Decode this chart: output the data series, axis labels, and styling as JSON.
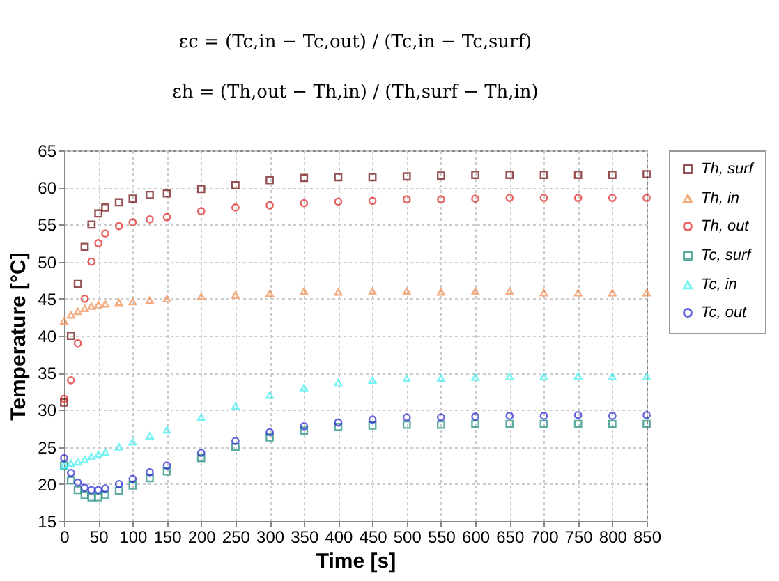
{
  "chart_data": {
    "type": "scatter",
    "annotations": [
      "εc = (Tc,in − Tc,out) / (Tc,in − Tc,surf)",
      "εh = (Th,out − Th,in) / (Th,surf − Th,in)"
    ],
    "xlabel": "Time [s]",
    "ylabel": "Temperature [°C]",
    "x": [
      0,
      10,
      20,
      30,
      40,
      50,
      60,
      80,
      100,
      125,
      150,
      200,
      250,
      300,
      350,
      400,
      450,
      500,
      550,
      600,
      650,
      700,
      750,
      800,
      850
    ],
    "series": [
      {
        "name": "Th, surf",
        "color": "#6b0a0a",
        "marker": "square",
        "values": [
          31,
          40,
          47,
          52,
          55,
          56.5,
          57.3,
          58,
          58.5,
          59,
          59.2,
          59.8,
          60.3,
          61,
          61.3,
          61.4,
          61.4,
          61.5,
          61.6,
          61.7,
          61.7,
          61.7,
          61.7,
          61.7,
          61.8
        ]
      },
      {
        "name": "Th, in",
        "color": "#f08a4b",
        "marker": "triangle",
        "values": [
          42,
          42.8,
          43.3,
          43.7,
          44,
          44.2,
          44.3,
          44.5,
          44.6,
          44.8,
          45,
          45.3,
          45.5,
          45.7,
          46,
          45.9,
          46,
          46,
          45.9,
          46,
          46,
          45.8,
          45.8,
          45.8,
          45.8
        ]
      },
      {
        "name": "Th, out",
        "color": "#e02020",
        "marker": "circle",
        "values": [
          31.5,
          34,
          39,
          45,
          50,
          52.5,
          53.8,
          54.8,
          55.3,
          55.7,
          56,
          56.8,
          57.3,
          57.6,
          57.9,
          58.1,
          58.2,
          58.4,
          58.4,
          58.5,
          58.6,
          58.6,
          58.6,
          58.6,
          58.6
        ]
      },
      {
        "name": "Tc, surf",
        "color": "#1a8a7a",
        "marker": "square",
        "values": [
          22.5,
          20.5,
          19.2,
          18.5,
          18.2,
          18.2,
          18.5,
          19.1,
          19.8,
          20.8,
          21.7,
          23.5,
          25,
          26.3,
          27.2,
          27.7,
          27.9,
          28,
          28,
          28.1,
          28.1,
          28.1,
          28.1,
          28.1,
          28.1
        ]
      },
      {
        "name": "Tc, in",
        "color": "#3ff0f0",
        "marker": "triangle",
        "values": [
          22.5,
          22.8,
          23,
          23.3,
          23.7,
          24,
          24.3,
          25,
          25.7,
          26.5,
          27.3,
          29,
          30.5,
          32,
          33,
          33.7,
          34,
          34.2,
          34.3,
          34.4,
          34.5,
          34.5,
          34.6,
          34.5,
          34.5
        ]
      },
      {
        "name": "Tc, out",
        "color": "#2222d0",
        "marker": "circle",
        "values": [
          23.5,
          21.5,
          20.2,
          19.5,
          19.2,
          19.2,
          19.4,
          20,
          20.7,
          21.6,
          22.5,
          24.2,
          25.8,
          27,
          27.8,
          28.3,
          28.7,
          29,
          29,
          29.1,
          29.2,
          29.2,
          29.3,
          29.2,
          29.3
        ]
      }
    ],
    "xlim": [
      0,
      850
    ],
    "xticks": [
      0,
      50,
      100,
      150,
      200,
      250,
      300,
      350,
      400,
      450,
      500,
      550,
      600,
      650,
      700,
      750,
      800,
      850
    ],
    "ylim": [
      15,
      65
    ],
    "yticks": [
      15,
      20,
      25,
      30,
      35,
      40,
      45,
      50,
      55,
      60,
      65
    ],
    "grid": true,
    "legend": "right"
  }
}
